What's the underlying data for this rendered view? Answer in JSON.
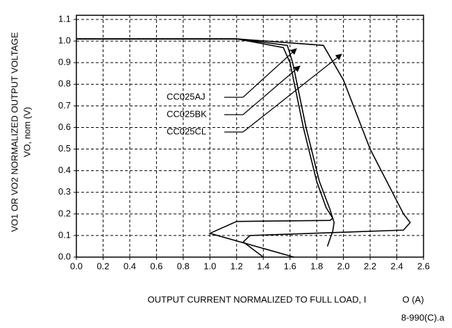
{
  "chart_data": {
    "type": "line",
    "xlabel": "OUTPUT CURRENT NORMALIZED TO FULL LOAD, I",
    "xlabel_unit": "O (A)",
    "ylabel": "VO1 OR VO2 NORMALIZED OUTPUT VOLTAGE",
    "ylabel_unit": "VO, nom (V)",
    "footnote": "8-990(C).a",
    "xlim": [
      0,
      2.6
    ],
    "xticks": [
      {
        "value": 0,
        "label": "0.0"
      },
      0.2,
      0.4,
      0.6,
      0.8,
      {
        "value": 1,
        "label": "1.0"
      },
      1.2,
      1.4,
      1.6,
      1.8,
      {
        "value": 2,
        "label": "2.0"
      },
      2.2,
      2.4,
      2.6
    ],
    "ylim": [
      0,
      1.1
    ],
    "yticks": [
      {
        "value": 0,
        "label": "0.0"
      },
      0.1,
      0.2,
      0.3,
      0.4,
      0.5,
      0.6,
      0.7,
      0.8,
      0.9,
      {
        "value": 1,
        "label": "1.0"
      },
      1.1
    ],
    "grid": true,
    "series": [
      {
        "name": "CC025AJ",
        "color": "#000000",
        "x": [
          0,
          1.2,
          1.55,
          1.6,
          1.7,
          1.8,
          1.87,
          1.92,
          1.9,
          1.2,
          1.0,
          1.63
        ],
        "values": [
          1.01,
          1.01,
          0.97,
          0.9,
          0.6,
          0.35,
          0.23,
          0.18,
          0.17,
          0.165,
          0.11,
          0.0
        ]
      },
      {
        "name": "CC025BK",
        "color": "#000000",
        "x": [
          0,
          1.2,
          1.58,
          1.62,
          1.72,
          1.82,
          1.9,
          1.93,
          1.92,
          1.88
        ],
        "values": [
          1.01,
          1.01,
          0.98,
          0.9,
          0.6,
          0.35,
          0.22,
          0.16,
          0.12,
          0.05
        ]
      },
      {
        "name": "CC025CL",
        "color": "#000000",
        "x": [
          0,
          1.2,
          1.85,
          2.0,
          2.2,
          2.35,
          2.45,
          2.5,
          2.45,
          1.3,
          1.25,
          1.4
        ],
        "values": [
          1.01,
          1.01,
          0.98,
          0.82,
          0.5,
          0.32,
          0.2,
          0.16,
          0.125,
          0.1,
          0.07,
          0.0
        ]
      }
    ]
  }
}
